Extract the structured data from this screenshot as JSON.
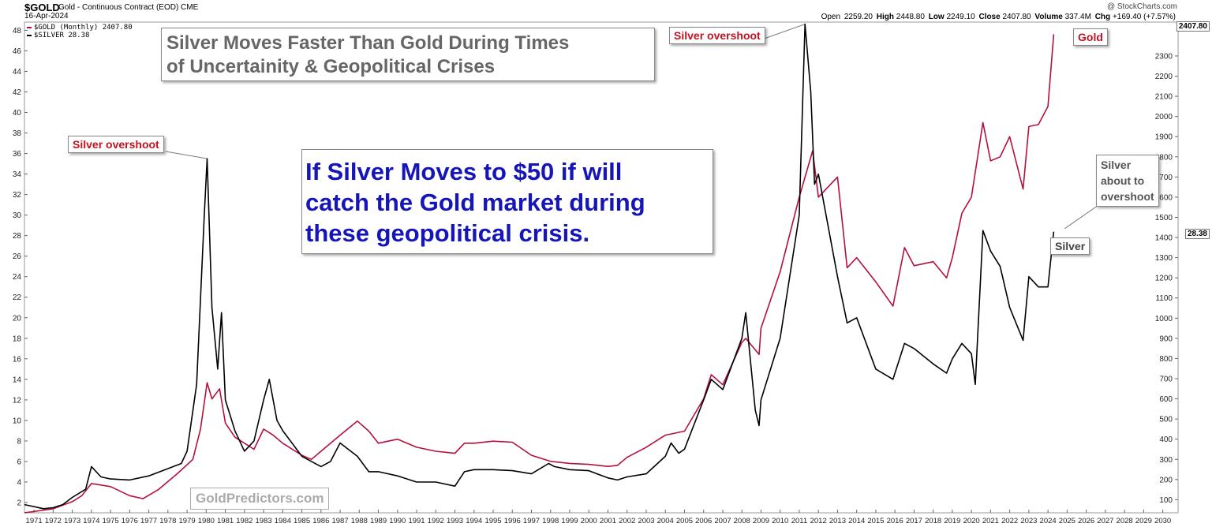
{
  "header": {
    "symbol": "$GOLD",
    "description": "Gold - Continuous Contract (EOD) CME",
    "date": "16-Apr-2024",
    "source": "@ StockCharts.com",
    "open_label": "Open",
    "open": "2259.20",
    "high_label": "High",
    "high": "2448.80",
    "low_label": "Low",
    "low": "2249.10",
    "close_label": "Close",
    "close": "2407.80",
    "volume_label": "Volume",
    "volume": "337.4M",
    "chg_label": "Chg",
    "chg": "+169.40 (+7.57%)"
  },
  "legend": {
    "gold": "$GOLD (Monthly) 2407.80",
    "silver": "$SILVER 28.38"
  },
  "annotations": {
    "title_line1": "Silver Moves Faster Than Gold During Times",
    "title_line2": "of Uncertainity & Geopolitical Crises",
    "callout_line1": "If Silver Moves to $50 if will",
    "callout_line2": "catch the Gold market during",
    "callout_line3": "these geopolitical crisis.",
    "overshoot_1980": "Silver overshoot",
    "overshoot_2011": "Silver overshoot",
    "gold_label": "Gold",
    "silver_label": "Silver",
    "about_line1": "Silver",
    "about_line2": "about to",
    "about_line3": "overshoot",
    "watermark": "GoldPredictors.com",
    "last_gold_tag": "2407.80",
    "last_silver_tag": "28.38"
  },
  "colors": {
    "gold": "#b5103c",
    "silver": "#000000",
    "callout_text": "#1515b8",
    "overshoot_text": "#c1121f"
  },
  "chart_data": {
    "type": "line",
    "title": "",
    "x_range": [
      1970.5,
      2030.8
    ],
    "x_ticks": [
      "1971",
      "1972",
      "1973",
      "1974",
      "1975",
      "1976",
      "1977",
      "1978",
      "1979",
      "1980",
      "1981",
      "1982",
      "1983",
      "1984",
      "1985",
      "1986",
      "1987",
      "1988",
      "1989",
      "1990",
      "1991",
      "1992",
      "1993",
      "1994",
      "1995",
      "1996",
      "1997",
      "1998",
      "1999",
      "2000",
      "2001",
      "2002",
      "2003",
      "2004",
      "2005",
      "2006",
      "2007",
      "2008",
      "2009",
      "2010",
      "2011",
      "2012",
      "2013",
      "2014",
      "2015",
      "2016",
      "2017",
      "2018",
      "2019",
      "2020",
      "2021",
      "2022",
      "2023",
      "2024",
      "2025",
      "2026",
      "2027",
      "2028",
      "2029",
      "2030"
    ],
    "y_left": {
      "label": "",
      "range": [
        1,
        48.8
      ],
      "ticks": [
        2,
        4,
        6,
        8,
        10,
        12,
        14,
        16,
        18,
        20,
        22,
        24,
        26,
        28,
        30,
        32,
        34,
        36,
        38,
        40,
        42,
        44,
        46,
        48
      ]
    },
    "y_right": {
      "label": "",
      "range": [
        35,
        2468
      ],
      "ticks": [
        100,
        200,
        300,
        400,
        500,
        600,
        700,
        800,
        900,
        1000,
        1100,
        1200,
        1300,
        1400,
        1500,
        1600,
        1700,
        1800,
        1900,
        2000,
        2100,
        2200,
        2300
      ]
    },
    "grid": false,
    "legend_position": "top-left",
    "series": [
      {
        "name": "$GOLD (Monthly) 2407.80",
        "axis": "right",
        "x": [
          1970.5,
          1972,
          1973,
          1973.5,
          1974,
          1975,
          1976,
          1976.7,
          1977.5,
          1978.5,
          1979.3,
          1979.7,
          1980.05,
          1980.3,
          1980.7,
          1981,
          1981.5,
          1982.5,
          1983,
          1983.5,
          1984,
          1985,
          1985.5,
          1986,
          1987,
          1987.9,
          1988.5,
          1989,
          1990,
          1991,
          1992,
          1993,
          1993.5,
          1994,
          1995,
          1996,
          1997,
          1998,
          1999,
          2000,
          2001,
          2001.5,
          2002,
          2003,
          2004,
          2005,
          2006,
          2006.4,
          2007,
          2008,
          2008.2,
          2008.9,
          2009,
          2010,
          2011,
          2011.7,
          2012,
          2013,
          2013.5,
          2014,
          2015,
          2015.9,
          2016.5,
          2017,
          2018,
          2018.7,
          2019,
          2019.5,
          2020,
          2020.6,
          2021,
          2021.5,
          2022,
          2022.7,
          2023,
          2023.5,
          2024,
          2024.3
        ],
        "values": [
          35,
          55,
          90,
          120,
          180,
          165,
          120,
          105,
          150,
          230,
          300,
          450,
          680,
          600,
          650,
          480,
          410,
          350,
          450,
          420,
          380,
          320,
          300,
          340,
          420,
          490,
          440,
          380,
          400,
          360,
          340,
          330,
          380,
          380,
          390,
          385,
          320,
          290,
          280,
          275,
          265,
          270,
          310,
          360,
          420,
          440,
          600,
          720,
          670,
          880,
          900,
          820,
          950,
          1230,
          1600,
          1830,
          1600,
          1700,
          1250,
          1300,
          1180,
          1060,
          1350,
          1260,
          1280,
          1200,
          1300,
          1520,
          1600,
          1970,
          1780,
          1800,
          1900,
          1640,
          1950,
          1960,
          2050,
          2407.8
        ]
      },
      {
        "name": "$SILVER 28.38",
        "axis": "left",
        "x": [
          1970.5,
          1971.5,
          1972,
          1972.5,
          1973,
          1973.7,
          1974,
          1974.5,
          1975,
          1976,
          1977,
          1978,
          1978.7,
          1979,
          1979.5,
          1979.9,
          1980.05,
          1980.3,
          1980.6,
          1980.8,
          1981,
          1981.5,
          1982,
          1982.5,
          1983,
          1983.3,
          1983.7,
          1984,
          1985,
          1986,
          1986.5,
          1987,
          1987.9,
          1988.5,
          1989,
          1990,
          1991,
          1992,
          1993,
          1993.5,
          1994,
          1995,
          1996,
          1997,
          1997.9,
          1998.2,
          1999,
          2000,
          2001,
          2001.5,
          2002,
          2003,
          2004,
          2004.3,
          2004.7,
          2005,
          2006,
          2006.4,
          2007,
          2008,
          2008.2,
          2008.7,
          2008.9,
          2009,
          2010,
          2011,
          2011.3,
          2011.6,
          2011.8,
          2012,
          2013,
          2013.5,
          2014,
          2015,
          2015.9,
          2016.5,
          2017,
          2018,
          2018.7,
          2019,
          2019.5,
          2020,
          2020.2,
          2020.6,
          2021,
          2021.5,
          2022,
          2022.7,
          2023,
          2023.5,
          2024,
          2024.3
        ],
        "values": [
          1.8,
          1.4,
          1.5,
          1.8,
          2.5,
          3.3,
          5.5,
          4.5,
          4.3,
          4.2,
          4.6,
          5.3,
          5.8,
          7,
          13.5,
          30,
          35.5,
          21,
          15,
          20.5,
          12,
          9,
          7,
          8,
          12,
          14,
          10,
          9,
          6.5,
          5.5,
          6,
          7.8,
          6.5,
          5,
          5,
          4.6,
          4,
          4,
          3.6,
          5,
          5.2,
          5.2,
          5.1,
          4.8,
          5.8,
          5.5,
          5.2,
          5.1,
          4.4,
          4.2,
          4.5,
          4.8,
          6.5,
          7.8,
          6.8,
          7.2,
          12,
          14,
          13,
          18,
          20.5,
          11,
          9.5,
          12,
          18,
          30,
          48.6,
          42,
          33,
          34,
          24,
          19.5,
          20,
          15,
          14,
          17.5,
          17,
          15.5,
          14.6,
          16,
          17.5,
          16.5,
          13.5,
          28.5,
          26.5,
          25,
          21,
          17.8,
          24,
          23,
          23,
          28.38
        ]
      }
    ],
    "annotations": [
      "Silver overshoot",
      "Silver overshoot",
      "Gold",
      "Silver",
      "Silver about to overshoot"
    ]
  }
}
